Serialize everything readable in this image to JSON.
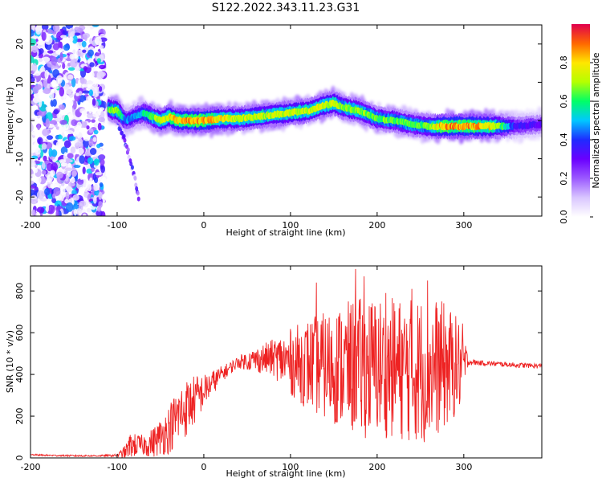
{
  "title": "S122.2022.343.11.23.G31",
  "colors": {
    "snr_line": "#ee2222",
    "colormap": [
      "#e8e8e8",
      "#ffffff",
      "#d9c6ff",
      "#9b59ff",
      "#6a00ff",
      "#1f2bff",
      "#00c8ff",
      "#00ff66",
      "#b5ff00",
      "#ffe600",
      "#ff6600",
      "#e0004d"
    ]
  },
  "chart_data": [
    {
      "type": "heatmap",
      "name": "spectrogram",
      "xlabel": "Height of straight line (km)",
      "ylabel": "Frequency (Hz)",
      "xlim": [
        -200,
        390
      ],
      "ylim": [
        -25,
        25
      ],
      "xticks": [
        -200,
        -100,
        0,
        100,
        200,
        300
      ],
      "yticks": [
        -20,
        -10,
        0,
        10,
        20
      ],
      "colorbar": {
        "label": "Normalized spectral amplitude",
        "range": [
          0,
          1
        ],
        "ticks": [
          0.0,
          0.2,
          0.4,
          0.6,
          0.8
        ]
      },
      "noise_region_x": [
        -200,
        -115
      ],
      "ridge": {
        "x": [
          -110,
          -100,
          -90,
          -80,
          -70,
          -60,
          -50,
          -40,
          -30,
          -20,
          0,
          20,
          40,
          60,
          80,
          100,
          120,
          140,
          150,
          160,
          180,
          200,
          220,
          240,
          260,
          275,
          300,
          330,
          360,
          390
        ],
        "freq": [
          3,
          2.5,
          0,
          1,
          2,
          1,
          0,
          1,
          0,
          0,
          0,
          0.5,
          0.5,
          1,
          1.5,
          2,
          2.5,
          4,
          4.5,
          3.5,
          2.5,
          0.5,
          0,
          -1,
          -1.5,
          -1.5,
          -1.5,
          -1.5,
          -1.5,
          -1
        ],
        "amplitude": [
          0.7,
          0.8,
          0.5,
          0.5,
          0.6,
          0.7,
          0.8,
          0.85,
          0.9,
          0.95,
          0.95,
          0.85,
          0.8,
          0.8,
          0.8,
          0.8,
          0.8,
          0.8,
          0.8,
          0.75,
          0.75,
          0.7,
          0.7,
          0.7,
          0.7,
          0.95,
          0.95,
          0.9,
          0.4,
          0.35
        ]
      },
      "branch": {
        "x": [
          -100,
          -95,
          -90,
          -85,
          -80,
          -75
        ],
        "freq": [
          0,
          -3,
          -6,
          -10,
          -15,
          -20
        ]
      }
    },
    {
      "type": "line",
      "name": "snr",
      "xlabel": "Height of straight line (km)",
      "ylabel": "SNR (10 * v/v)",
      "xlim": [
        -200,
        390
      ],
      "ylim": [
        0,
        920
      ],
      "xticks": [
        -200,
        -100,
        0,
        100,
        200,
        300
      ],
      "yticks": [
        0,
        200,
        400,
        600,
        800
      ],
      "envelope": {
        "x": [
          -200,
          -180,
          -150,
          -120,
          -100,
          -90,
          -85,
          -70,
          -60,
          -50,
          -40,
          -30,
          -20,
          -10,
          0,
          10,
          20,
          30,
          40,
          60,
          80,
          100,
          120,
          140,
          160,
          180,
          200,
          220,
          240,
          260,
          280,
          300,
          305,
          320,
          340,
          360,
          390
        ],
        "baseline": [
          15,
          12,
          10,
          10,
          12,
          30,
          60,
          60,
          70,
          100,
          140,
          200,
          240,
          280,
          320,
          360,
          400,
          430,
          460,
          470,
          480,
          460,
          450,
          440,
          440,
          430,
          440,
          430,
          420,
          430,
          440,
          440,
          460,
          455,
          450,
          445,
          440
        ],
        "spread": [
          4,
          4,
          4,
          4,
          6,
          35,
          60,
          50,
          70,
          90,
          120,
          140,
          140,
          120,
          80,
          60,
          40,
          30,
          30,
          60,
          90,
          160,
          220,
          260,
          300,
          340,
          340,
          340,
          350,
          360,
          300,
          200,
          15,
          12,
          12,
          12,
          12
        ]
      },
      "peaks": [
        {
          "x": 175,
          "y": 905
        },
        {
          "x": 185,
          "y": 870
        },
        {
          "x": 130,
          "y": 840
        },
        {
          "x": 258,
          "y": 850
        },
        {
          "x": 240,
          "y": 810
        },
        {
          "x": 210,
          "y": 790
        }
      ],
      "n_samples": 1200
    }
  ]
}
